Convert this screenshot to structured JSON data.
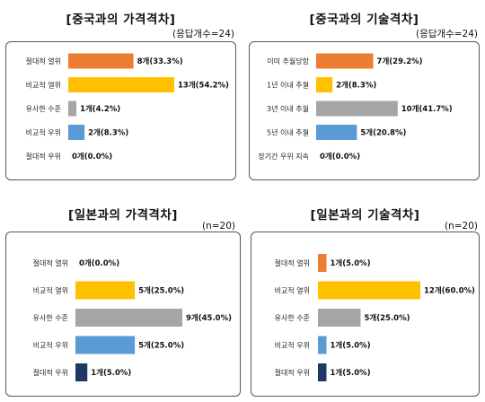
{
  "colors": {
    "orange": "#ED7D31",
    "yellow": "#FFC000",
    "gray": "#A5A5A5",
    "blue": "#5B9BD5",
    "navy": "#203864"
  },
  "chart_data": [
    {
      "type": "bar",
      "orientation": "horizontal",
      "title": "[중국과의 가격격차]",
      "note": "(응답개수=24)",
      "categories": [
        "절대적 열위",
        "비교적 열위",
        "유사한 수준",
        "비교적 우위",
        "절대적 우위"
      ],
      "values": [
        8,
        13,
        1,
        2,
        0
      ],
      "labels": [
        "8개(33.3%)",
        "13개(54.2%)",
        "1개(4.2%)",
        "2개(8.3%)",
        "0개(0.0%)"
      ],
      "colors": [
        "#ED7D31",
        "#FFC000",
        "#A5A5A5",
        "#5B9BD5",
        "#203864"
      ],
      "xlim": [
        0,
        13
      ]
    },
    {
      "type": "bar",
      "orientation": "horizontal",
      "title": "[중국과의 기술격차]",
      "note": "(응답개수=24)",
      "categories": [
        "이미 추월당함",
        "1년 이내 추월",
        "3년 이내 추월",
        "5년 이내 추월",
        "장기간 우위 지속"
      ],
      "values": [
        7,
        2,
        10,
        5,
        0
      ],
      "labels": [
        "7개(29.2%)",
        "2개(8.3%)",
        "10개(41.7%)",
        "5개(20.8%)",
        "0개(0.0%)"
      ],
      "colors": [
        "#ED7D31",
        "#FFC000",
        "#A5A5A5",
        "#5B9BD5",
        "#203864"
      ],
      "xlim": [
        0,
        13
      ]
    },
    {
      "type": "bar",
      "orientation": "horizontal",
      "title": "[일본과의 가격격차]",
      "note": "(n=20)",
      "categories": [
        "절대적 열위",
        "비교적 열위",
        "유사한 수준",
        "비교적 우위",
        "절대적 우위"
      ],
      "values": [
        0,
        5,
        9,
        5,
        1
      ],
      "labels": [
        "0개(0.0%)",
        "5개(25.0%)",
        "9개(45.0%)",
        "5개(25.0%)",
        "1개(5.0%)"
      ],
      "colors": [
        "#ED7D31",
        "#FFC000",
        "#A5A5A5",
        "#5B9BD5",
        "#203864"
      ],
      "xlim": [
        0,
        9
      ]
    },
    {
      "type": "bar",
      "orientation": "horizontal",
      "title": "[일본과의 기술격차]",
      "note": "(n=20)",
      "categories": [
        "절대적 열위",
        "비교적 열위",
        "유사한 수준",
        "비교적 우위",
        "절대적 우위"
      ],
      "values": [
        1,
        12,
        5,
        1,
        1
      ],
      "labels": [
        "1개(5.0%)",
        "12개(60.0%)",
        "5개(25.0%)",
        "1개(5.0%)",
        "1개(5.0%)"
      ],
      "colors": [
        "#ED7D31",
        "#FFC000",
        "#A5A5A5",
        "#5B9BD5",
        "#203864"
      ],
      "xlim": [
        0,
        12
      ]
    }
  ]
}
